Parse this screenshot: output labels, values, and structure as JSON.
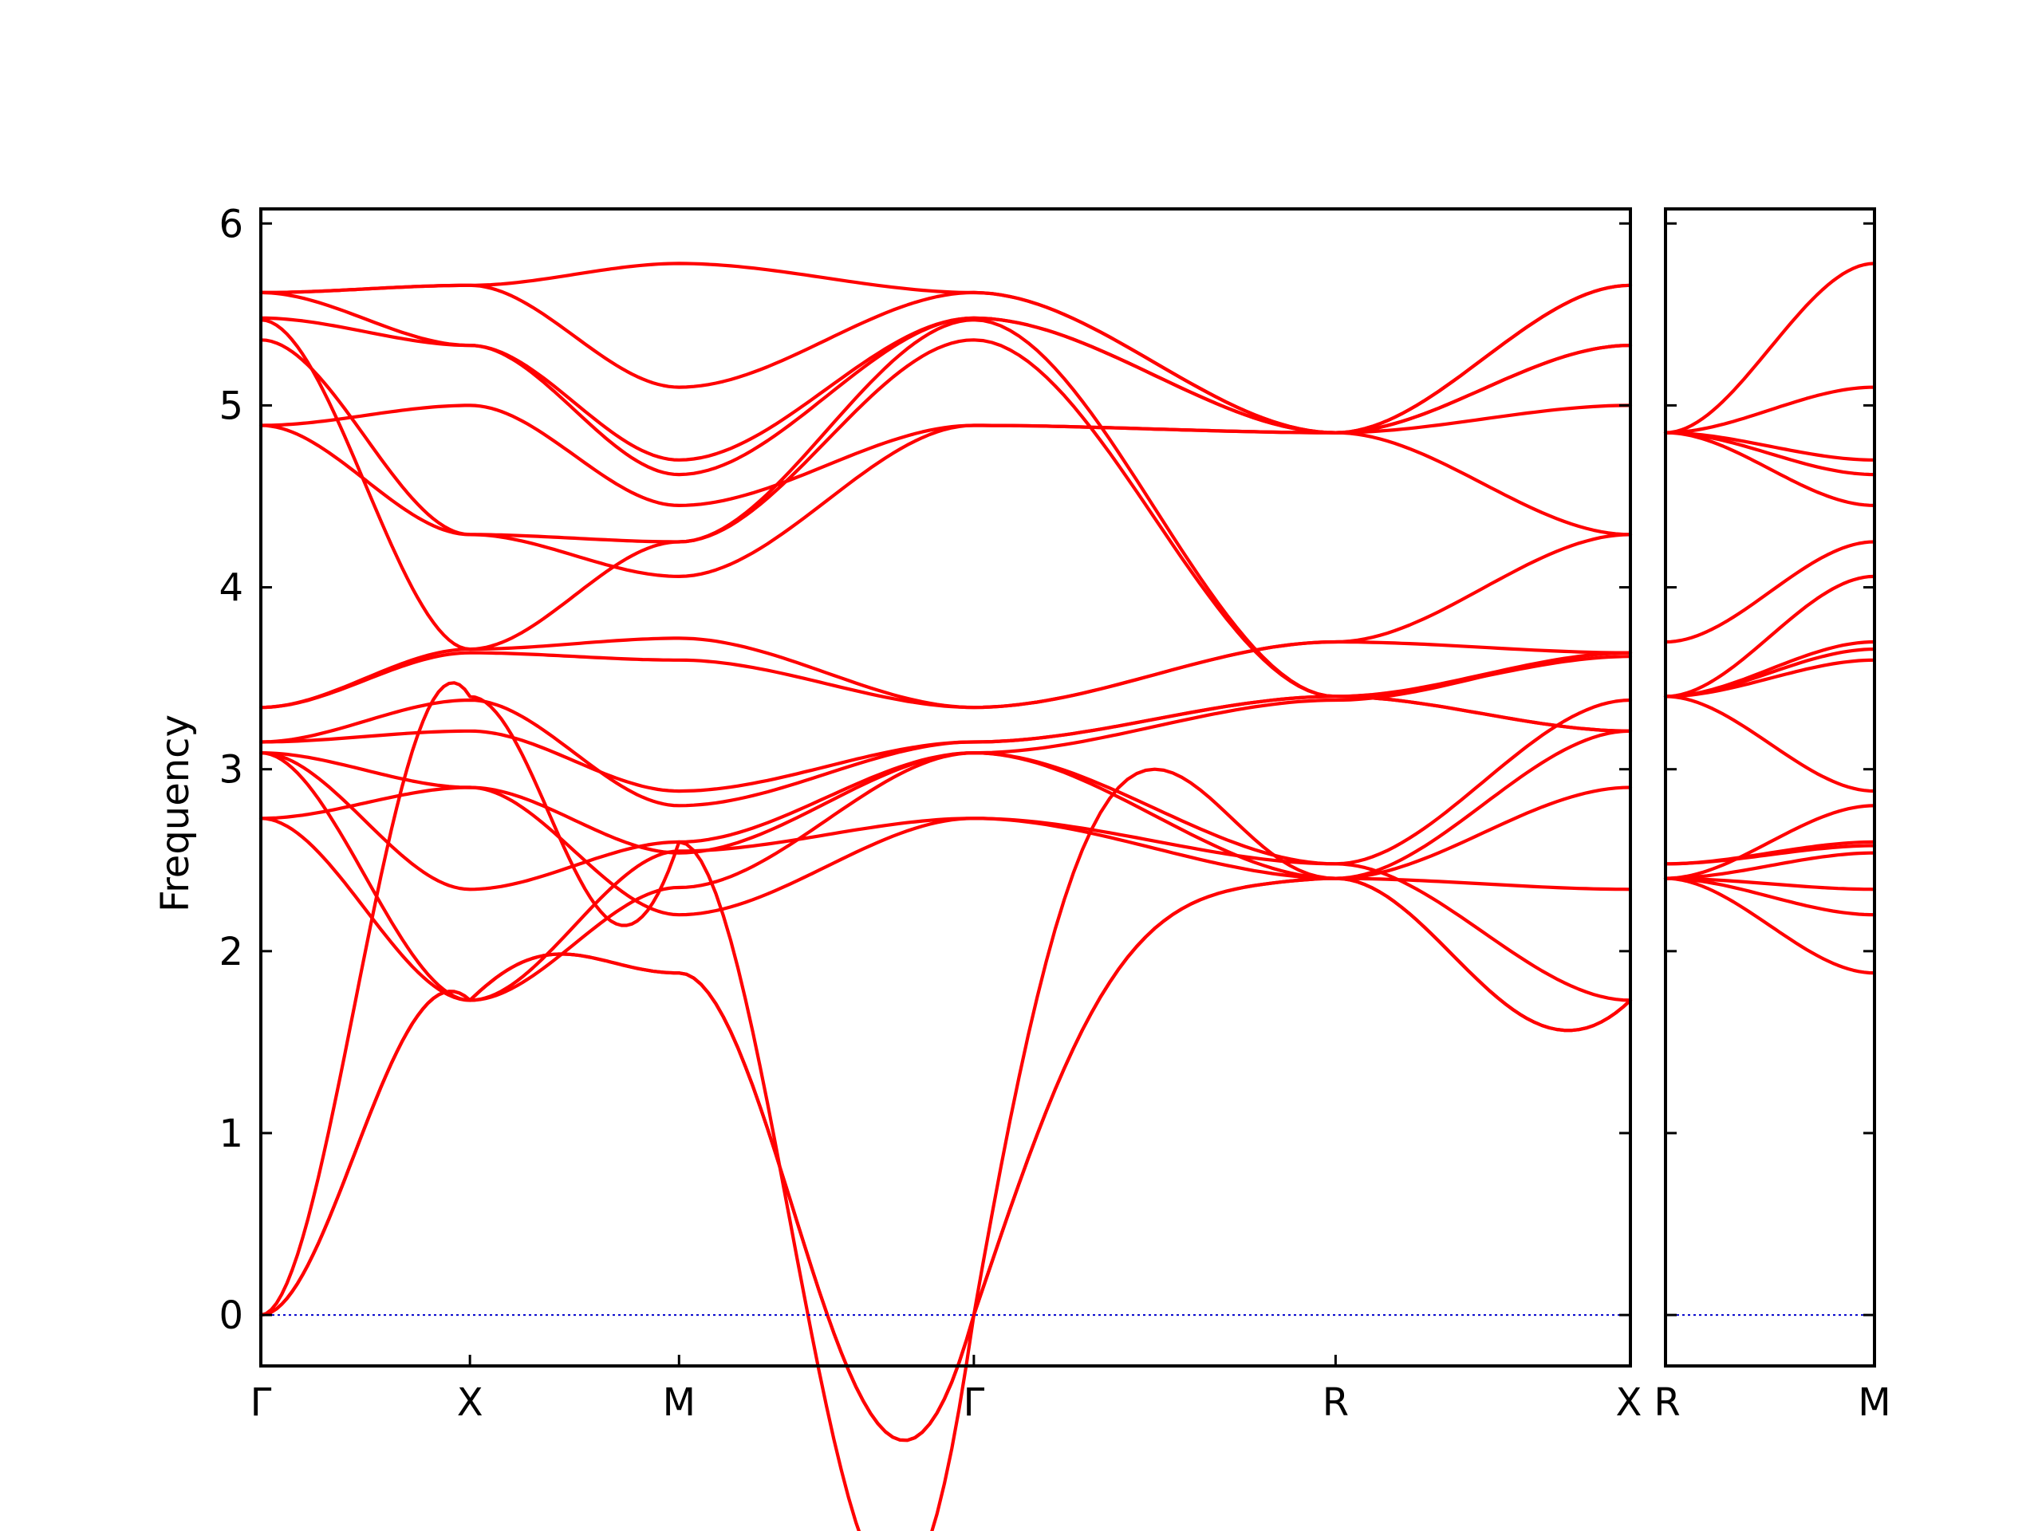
{
  "chart_data": {
    "type": "line",
    "title": "",
    "ylabel": "Frequency",
    "ylim": [
      -0.28,
      6.08
    ],
    "yticks": [
      0,
      1,
      2,
      3,
      4,
      5,
      6
    ],
    "colors": {
      "band": "#ff0000",
      "zero_line": "#0000cc",
      "axes": "#000000"
    },
    "panels": [
      {
        "segments": [
          {
            "from": "Γ",
            "to": "X",
            "length": 1.0
          },
          {
            "from": "X",
            "to": "M",
            "length": 1.0
          },
          {
            "from": "M",
            "to": "Γ",
            "length": 1.41
          },
          {
            "from": "Γ",
            "to": "R",
            "length": 1.73
          },
          {
            "from": "R",
            "to": "X",
            "length": 1.41
          }
        ],
        "xtick_labels": [
          "Γ",
          "X",
          "M",
          "Γ",
          "R",
          "X"
        ],
        "zero_line": true
      },
      {
        "segments": [
          {
            "from": "R",
            "to": "M",
            "length": 1.0
          }
        ],
        "xtick_labels": [
          "R",
          "M"
        ],
        "zero_line": true
      }
    ],
    "series": [
      {
        "panel": 0,
        "nodes": [
          [
            0,
            1.73,
            0,
            0.35
          ],
          [
            1.73,
            1.88,
            0.35,
            0
          ],
          [
            1.88,
            0,
            0,
            -1.85
          ],
          [
            0,
            2.4,
            1.85,
            0
          ],
          [
            2.4,
            1.73,
            0,
            -0.5
          ]
        ]
      },
      {
        "panel": 0,
        "nodes": [
          [
            0,
            1.73,
            0,
            0.35
          ],
          [
            1.73,
            1.88,
            0.35,
            0
          ],
          [
            1.88,
            0,
            0,
            -1.85
          ],
          [
            0,
            2.4,
            1.85,
            0
          ],
          [
            2.4,
            1.73,
            0,
            -0.5
          ]
        ]
      },
      {
        "panel": 0,
        "nodes": [
          [
            0,
            3.4,
            0,
            0.6
          ],
          [
            3.4,
            2.6,
            0,
            -1.1
          ],
          [
            2.6,
            0,
            0,
            -3.6
          ],
          [
            0,
            2.4,
            3.6,
            0
          ],
          [
            2.4,
            2.34,
            0,
            0
          ]
        ]
      },
      {
        "panel": 0,
        "nodes": [
          [
            2.73,
            2.9,
            0,
            0
          ],
          [
            2.9,
            2.2,
            0,
            0
          ],
          [
            2.2,
            2.73,
            0,
            0
          ],
          [
            2.73,
            2.48,
            0,
            0
          ],
          [
            2.48,
            1.73,
            0,
            0
          ]
        ]
      },
      {
        "panel": 0,
        "nodes": [
          [
            2.73,
            1.73,
            0,
            0
          ],
          [
            1.73,
            2.55,
            0,
            0
          ],
          [
            2.55,
            2.73,
            0,
            0
          ],
          [
            2.73,
            2.4,
            0,
            0
          ],
          [
            2.4,
            2.9,
            0,
            0
          ]
        ]
      },
      {
        "panel": 0,
        "nodes": [
          [
            3.09,
            1.73,
            0,
            0
          ],
          [
            1.73,
            2.35,
            0,
            0
          ],
          [
            2.35,
            3.09,
            0,
            0
          ],
          [
            3.09,
            2.4,
            0,
            0
          ],
          [
            2.4,
            3.21,
            0,
            0
          ]
        ]
      },
      {
        "panel": 0,
        "nodes": [
          [
            3.09,
            2.34,
            0,
            0
          ],
          [
            2.34,
            2.6,
            0,
            0
          ],
          [
            2.6,
            3.09,
            0,
            0
          ],
          [
            3.09,
            2.48,
            0,
            0
          ],
          [
            2.48,
            3.38,
            0,
            0
          ]
        ]
      },
      {
        "panel": 0,
        "nodes": [
          [
            3.09,
            2.9,
            0,
            0
          ],
          [
            2.9,
            2.54,
            0,
            0
          ],
          [
            2.54,
            3.09,
            0,
            0
          ],
          [
            3.09,
            3.38,
            0,
            0
          ],
          [
            3.38,
            3.64,
            0,
            0
          ]
        ]
      },
      {
        "panel": 0,
        "nodes": [
          [
            3.15,
            3.21,
            0,
            0
          ],
          [
            3.21,
            2.88,
            0,
            0
          ],
          [
            2.88,
            3.15,
            0,
            0
          ],
          [
            3.15,
            3.4,
            0,
            0
          ],
          [
            3.4,
            3.21,
            0,
            0
          ]
        ]
      },
      {
        "panel": 0,
        "nodes": [
          [
            3.15,
            3.38,
            0,
            0
          ],
          [
            3.38,
            2.8,
            0,
            0
          ],
          [
            2.8,
            3.15,
            0,
            0
          ],
          [
            3.15,
            3.4,
            0,
            0
          ],
          [
            3.4,
            3.62,
            0,
            0
          ]
        ]
      },
      {
        "panel": 0,
        "nodes": [
          [
            3.34,
            3.64,
            0,
            0
          ],
          [
            3.64,
            3.6,
            0,
            0
          ],
          [
            3.6,
            3.34,
            0,
            0
          ],
          [
            3.34,
            3.7,
            0,
            0
          ],
          [
            3.7,
            3.64,
            0,
            0
          ]
        ]
      },
      {
        "panel": 0,
        "nodes": [
          [
            3.34,
            3.66,
            0,
            0
          ],
          [
            3.66,
            3.72,
            0,
            0
          ],
          [
            3.72,
            3.34,
            0,
            0
          ],
          [
            3.34,
            3.7,
            0,
            0
          ],
          [
            3.7,
            4.29,
            0,
            0
          ]
        ]
      },
      {
        "panel": 0,
        "nodes": [
          [
            4.89,
            4.29,
            0,
            0
          ],
          [
            4.29,
            4.06,
            0,
            0
          ],
          [
            4.06,
            4.89,
            0,
            0
          ],
          [
            4.89,
            4.85,
            0,
            0
          ],
          [
            4.85,
            5.0,
            0,
            0
          ]
        ]
      },
      {
        "panel": 0,
        "nodes": [
          [
            4.89,
            5.0,
            0,
            0
          ],
          [
            5.0,
            4.45,
            0,
            0
          ],
          [
            4.45,
            4.89,
            0,
            0
          ],
          [
            4.89,
            4.85,
            0,
            0
          ],
          [
            4.85,
            5.33,
            0,
            0
          ]
        ]
      },
      {
        "panel": 0,
        "nodes": [
          [
            5.36,
            4.29,
            0,
            0
          ],
          [
            4.29,
            4.25,
            0,
            0
          ],
          [
            4.25,
            5.36,
            0,
            0
          ],
          [
            5.36,
            3.4,
            0,
            0
          ],
          [
            3.4,
            3.64,
            0,
            0
          ]
        ]
      },
      {
        "panel": 0,
        "nodes": [
          [
            5.47,
            3.66,
            0,
            0
          ],
          [
            3.66,
            4.25,
            0,
            0
          ],
          [
            4.25,
            5.47,
            0,
            0
          ],
          [
            5.47,
            3.4,
            0,
            0
          ],
          [
            3.4,
            3.21,
            0,
            0
          ]
        ]
      },
      {
        "panel": 0,
        "nodes": [
          [
            5.48,
            5.33,
            0,
            0
          ],
          [
            5.33,
            4.62,
            0,
            0
          ],
          [
            4.62,
            5.48,
            0,
            0
          ],
          [
            5.48,
            4.85,
            0,
            0
          ],
          [
            4.85,
            5.66,
            0,
            0
          ]
        ]
      },
      {
        "panel": 0,
        "nodes": [
          [
            5.62,
            5.33,
            0,
            0
          ],
          [
            5.33,
            4.7,
            0,
            0
          ],
          [
            4.7,
            5.48,
            0,
            0
          ],
          [
            5.48,
            4.85,
            0,
            0
          ],
          [
            4.85,
            4.29,
            0,
            0
          ]
        ]
      },
      {
        "panel": 0,
        "nodes": [
          [
            5.62,
            5.66,
            0,
            0
          ],
          [
            5.66,
            5.1,
            0,
            0
          ],
          [
            5.1,
            5.62,
            0,
            0
          ],
          [
            5.62,
            4.85,
            0,
            0
          ],
          [
            4.85,
            5.33,
            0,
            0
          ]
        ]
      },
      {
        "panel": 0,
        "nodes": [
          [
            5.62,
            5.66,
            0,
            0
          ],
          [
            5.66,
            5.78,
            0,
            0
          ],
          [
            5.78,
            5.62,
            0,
            0
          ],
          [
            5.62,
            4.85,
            0,
            0
          ],
          [
            4.85,
            5.66,
            0,
            0
          ]
        ]
      },
      {
        "panel": 1,
        "nodes": [
          [
            2.4,
            1.88,
            0,
            0
          ]
        ]
      },
      {
        "panel": 1,
        "nodes": [
          [
            2.4,
            2.2,
            0,
            0
          ]
        ]
      },
      {
        "panel": 1,
        "nodes": [
          [
            2.4,
            2.34,
            0,
            0
          ]
        ]
      },
      {
        "panel": 1,
        "nodes": [
          [
            2.4,
            2.54,
            0,
            0
          ]
        ]
      },
      {
        "panel": 1,
        "nodes": [
          [
            2.48,
            2.58,
            0,
            0
          ]
        ]
      },
      {
        "panel": 1,
        "nodes": [
          [
            2.48,
            2.6,
            0,
            0
          ]
        ]
      },
      {
        "panel": 1,
        "nodes": [
          [
            2.4,
            2.8,
            0,
            0
          ]
        ]
      },
      {
        "panel": 1,
        "nodes": [
          [
            3.4,
            2.88,
            0,
            0
          ]
        ]
      },
      {
        "panel": 1,
        "nodes": [
          [
            3.4,
            3.6,
            0,
            0
          ]
        ]
      },
      {
        "panel": 1,
        "nodes": [
          [
            3.4,
            3.66,
            0,
            0
          ]
        ]
      },
      {
        "panel": 1,
        "nodes": [
          [
            3.4,
            3.7,
            0,
            0
          ]
        ]
      },
      {
        "panel": 1,
        "nodes": [
          [
            3.4,
            4.06,
            0,
            0
          ]
        ]
      },
      {
        "panel": 1,
        "nodes": [
          [
            3.7,
            4.25,
            0,
            0
          ]
        ]
      },
      {
        "panel": 1,
        "nodes": [
          [
            4.85,
            4.45,
            0,
            0
          ]
        ]
      },
      {
        "panel": 1,
        "nodes": [
          [
            4.85,
            4.62,
            0,
            0
          ]
        ]
      },
      {
        "panel": 1,
        "nodes": [
          [
            4.85,
            4.7,
            0,
            0
          ]
        ]
      },
      {
        "panel": 1,
        "nodes": [
          [
            4.85,
            5.1,
            0,
            0
          ]
        ]
      },
      {
        "panel": 1,
        "nodes": [
          [
            4.85,
            5.78,
            0,
            0
          ]
        ]
      }
    ]
  }
}
